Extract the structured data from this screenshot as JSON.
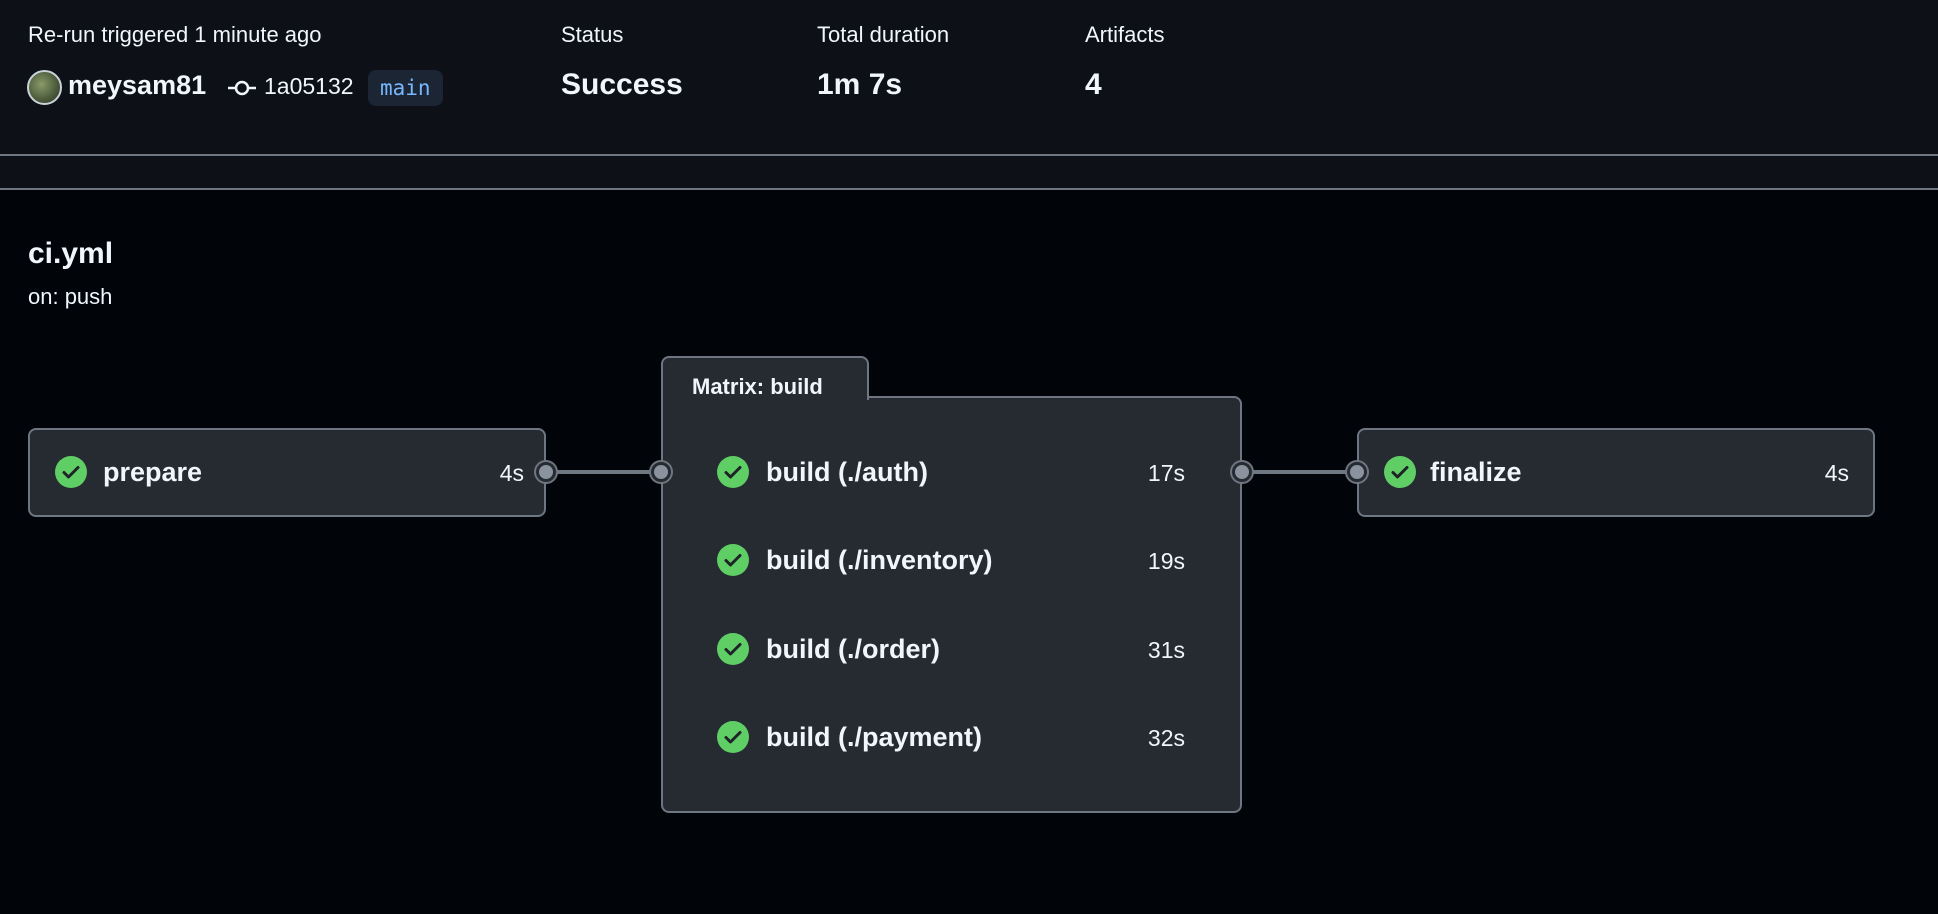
{
  "summary": {
    "trigger": "Re-run triggered 1 minute ago",
    "user": "meysam81",
    "commit": "1a05132",
    "branch": "main",
    "status_label": "Status",
    "status_value": "Success",
    "duration_label": "Total duration",
    "duration_value": "1m 7s",
    "artifacts_label": "Artifacts",
    "artifacts_value": "4"
  },
  "workflow": {
    "file": "ci.yml",
    "trigger": "on: push"
  },
  "jobs": {
    "prepare": {
      "name": "prepare",
      "duration": "4s",
      "status": "success"
    },
    "matrix": {
      "title": "Matrix: build",
      "items": [
        {
          "name": "build (./auth)",
          "duration": "17s",
          "status": "success"
        },
        {
          "name": "build (./inventory)",
          "duration": "19s",
          "status": "success"
        },
        {
          "name": "build (./order)",
          "duration": "31s",
          "status": "success"
        },
        {
          "name": "build (./payment)",
          "duration": "32s",
          "status": "success"
        }
      ]
    },
    "finalize": {
      "name": "finalize",
      "duration": "4s",
      "status": "success"
    }
  },
  "colors": {
    "success": "#5fcf65",
    "header_bg": "#0d1117",
    "page_bg": "#010409",
    "card_bg": "#262a31",
    "branch": "#79b8ff"
  }
}
